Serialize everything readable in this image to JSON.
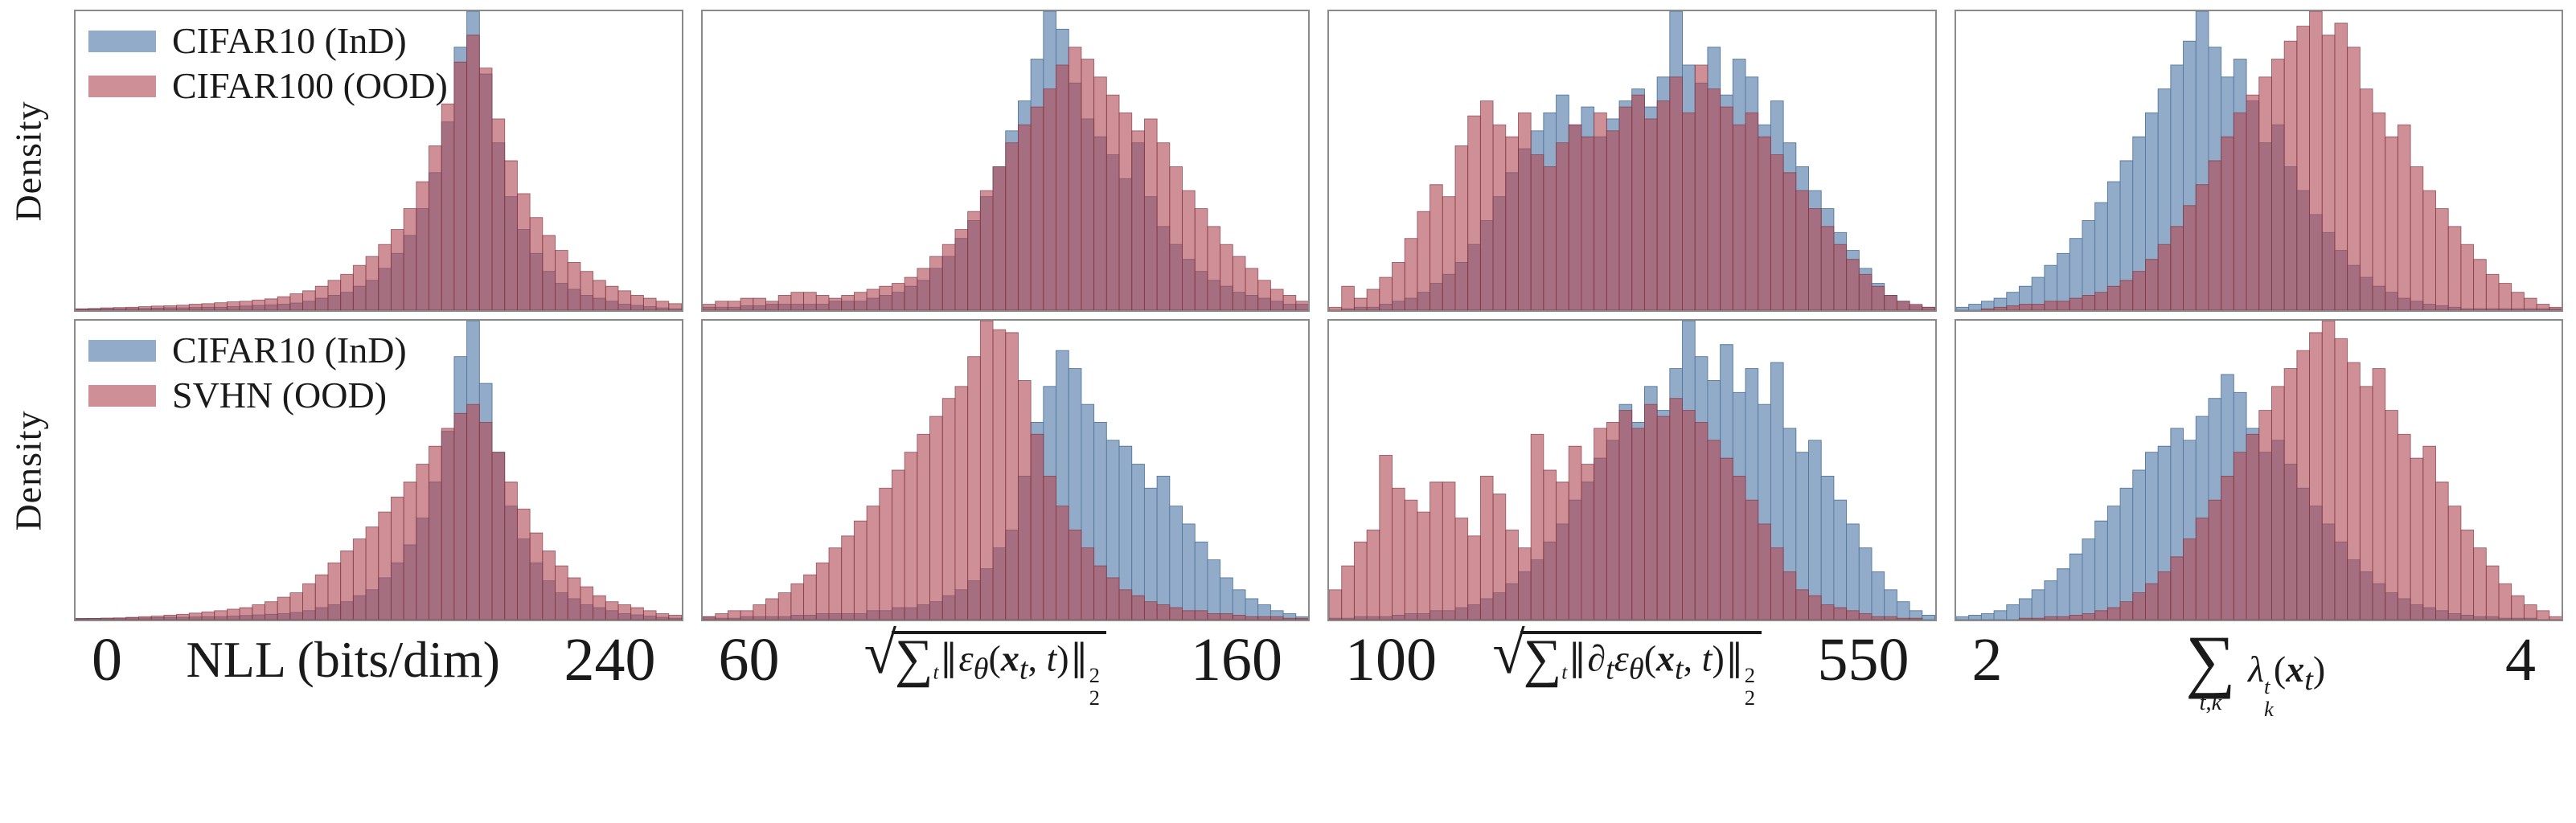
{
  "figure": {
    "description": "2x4 grid of overlapping density histograms comparing in-distribution CIFAR10 statistics against OOD datasets (CIFAR100 top row, SVHN bottom row)"
  },
  "chart_data": {
    "type": "histogram",
    "grid": {
      "rows": 2,
      "cols": 4
    },
    "ylabel": "Density",
    "legend_position": "upper-left of first panel in each row",
    "grid_lines": false,
    "colors": {
      "ind_fill": "#92abc9",
      "ind_edge": "#54779c",
      "ood_fill": "rgba(178,74,86,0.62)",
      "ood_edge": "rgba(128,52,62,0.72)",
      "ood_legend_swatch": "#cf8f96",
      "overlap_appearance": "#a4737e",
      "panel_border": "#8a8a8a"
    },
    "rows": [
      {
        "ood_dataset": "CIFAR100",
        "legend_ind": "CIFAR10 (InD)",
        "legend_ood": "CIFAR100 (OOD)"
      },
      {
        "ood_dataset": "SVHN",
        "legend_ind": "CIFAR10 (InD)",
        "legend_ood": "SVHN (OOD)"
      }
    ],
    "columns": [
      {
        "xlabel_text": "NLL (bits/dim)",
        "xlabel_html": "NLL (bits/dim)",
        "math": false,
        "xmin": 0,
        "xmax": 240,
        "xmin_label": "0",
        "xmax_label": "240"
      },
      {
        "xlabel_text": "sqrt( sum_t || eps_theta(x_t, t) ||_2^2 )",
        "xlabel_html": "<span class=\"rad\">√</span><span class=\"ovl\"><span class=\"insum\">∑</span><sub class=\"lim\"><i>t</i></sub><span class=\"nrm\">∥</span><i>ε</i><sub><i>θ</i></sub>(<b><i>x</i></b><sub><i>t</i></sub>, <i>t</i>)<span class=\"nrm\">∥</span><span class=\"ss\"><span>2</span><span>2</span></span></span>",
        "math": true,
        "xmin": 60,
        "xmax": 160,
        "xmin_label": "60",
        "xmax_label": "160"
      },
      {
        "xlabel_text": "sqrt( sum_t || d_t eps_theta(x_t, t) ||_2^2 )",
        "xlabel_html": "<span class=\"rad\">√</span><span class=\"ovl\"><span class=\"insum\">∑</span><sub class=\"lim\"><i>t</i></sub><span class=\"nrm\">∥</span><i>∂</i><sub><i>t</i></sub><i>ε</i><sub><i>θ</i></sub>(<b><i>x</i></b><sub><i>t</i></sub>, <i>t</i>)<span class=\"nrm\">∥</span><span class=\"ss\"><span>2</span><span>2</span></span></span>",
        "math": true,
        "xmin": 100,
        "xmax": 550,
        "xmin_label": "100",
        "xmax_label": "550"
      },
      {
        "xlabel_text": "sum_{t,k} lambda_k^t(x_t)",
        "xlabel_html": "<span class=\"bigsum\"><span class=\"sig\">∑</span><span class=\"under\"><i>t</i>,<i>k</i></span></span> <i>λ</i><span class=\"ss\"><span><i>t</i></span><span><i>k</i></span></span>(<b><i>x</i></b><sub><i>t</i></sub>)",
        "math": true,
        "xmin": 2,
        "xmax": 4,
        "xmin_label": "2",
        "xmax_label": "4"
      }
    ],
    "value_units": "percent of panel height (densities, y axis unlabeled)",
    "panels": [
      {
        "row": 0,
        "col": 0,
        "series": [
          {
            "name": "CIFAR10 (InD)",
            "values": [
              0.4,
              0.4,
              0.5,
              0.5,
              0.6,
              0.6,
              0.7,
              0.8,
              0.8,
              0.9,
              1,
              1,
              1.2,
              1.4,
              1.6,
              1.8,
              2,
              2.4,
              3,
              4,
              5,
              6,
              8,
              10,
              14,
              19,
              25,
              34,
              46,
              63,
              88,
              100,
              79,
              56,
              38,
              27,
              19,
              13,
              9,
              7,
              5,
              4,
              3,
              2,
              1.6,
              1.2,
              0.8,
              0.5
            ]
          },
          {
            "name": "CIFAR100 (OOD)",
            "values": [
              0.5,
              0.6,
              0.8,
              0.9,
              1,
              1.2,
              1.4,
              1.5,
              1.7,
              2,
              2.2,
              2.5,
              2.8,
              3,
              3.4,
              3.8,
              4.5,
              5.5,
              6.5,
              8,
              10,
              12,
              15,
              18,
              22,
              27,
              34,
              43,
              55,
              69,
              83,
              92,
              81,
              64,
              50,
              39,
              31,
              25,
              20,
              16,
              13,
              10,
              8,
              6.5,
              5,
              4,
              3,
              2.2
            ]
          }
        ]
      },
      {
        "row": 0,
        "col": 1,
        "series": [
          {
            "name": "CIFAR10 (InD)",
            "values": [
              1,
              1,
              1,
              1.5,
              1.5,
              2,
              2,
              2,
              2,
              2,
              3,
              3,
              3,
              4,
              5,
              6,
              8,
              10,
              14,
              18,
              24,
              30,
              38,
              48,
              60,
              70,
              84,
              100,
              94,
              76,
              64,
              58,
              52,
              44,
              56,
              38,
              28,
              22,
              17,
              13,
              10,
              8,
              6,
              5,
              4,
              3,
              2,
              2
            ]
          },
          {
            "name": "CIFAR100 (OOD)",
            "values": [
              2,
              3,
              3,
              4,
              4,
              3,
              5,
              6,
              6,
              5,
              4,
              5,
              6,
              7,
              8,
              9,
              11,
              14,
              18,
              22,
              27,
              33,
              40,
              48,
              56,
              62,
              68,
              74,
              82,
              88,
              84,
              78,
              72,
              66,
              60,
              64,
              56,
              48,
              40,
              34,
              28,
              22,
              18,
              14,
              10,
              7,
              5,
              3
            ]
          }
        ]
      },
      {
        "row": 0,
        "col": 2,
        "series": [
          {
            "name": "CIFAR10 (InD)",
            "values": [
              0,
              0.5,
              1,
              1,
              2,
              3,
              4,
              6,
              9,
              12,
              16,
              22,
              30,
              38,
              46,
              54,
              60,
              66,
              72,
              62,
              68,
              58,
              64,
              70,
              74,
              68,
              78,
              100,
              82,
              76,
              88,
              72,
              84,
              78,
              62,
              70,
              56,
              48,
              40,
              34,
              26,
              20,
              14,
              9,
              5,
              3,
              1.5,
              1
            ]
          },
          {
            "name": "CIFAR100 (OOD)",
            "values": [
              1,
              8,
              4,
              7,
              11,
              16,
              24,
              33,
              42,
              38,
              55,
              65,
              70,
              62,
              58,
              66,
              52,
              48,
              56,
              62,
              58,
              66,
              60,
              68,
              72,
              64,
              70,
              78,
              66,
              82,
              74,
              68,
              62,
              66,
              58,
              52,
              46,
              40,
              34,
              28,
              22,
              17,
              12,
              8,
              5,
              3,
              2,
              1
            ]
          }
        ]
      },
      {
        "row": 0,
        "col": 3,
        "series": [
          {
            "name": "CIFAR10 (InD)",
            "values": [
              1,
              2,
              3,
              4,
              6,
              8,
              11,
              15,
              19,
              24,
              30,
              36,
              43,
              50,
              58,
              66,
              74,
              82,
              90,
              100,
              88,
              78,
              84,
              70,
              56,
              62,
              48,
              40,
              32,
              26,
              20,
              15,
              11,
              8,
              6,
              4,
              3,
              2,
              1.5,
              1,
              0.5,
              0.5,
              0.5,
              0.5,
              0.5,
              0.5,
              0.5,
              0.5
            ]
          },
          {
            "name": "CIFAR100 (OOD)",
            "values": [
              0,
              0,
              0.5,
              1,
              1.5,
              2,
              2,
              3,
              3,
              4,
              5,
              6,
              8,
              10,
              13,
              17,
              22,
              28,
              35,
              42,
              50,
              58,
              66,
              72,
              78,
              84,
              90,
              95,
              100,
              92,
              96,
              88,
              74,
              66,
              58,
              62,
              48,
              40,
              34,
              28,
              22,
              17,
              12,
              9,
              6,
              4,
              2,
              1
            ]
          }
        ]
      },
      {
        "row": 1,
        "col": 0,
        "series": [
          {
            "name": "CIFAR10 (InD)",
            "values": [
              0.4,
              0.4,
              0.5,
              0.5,
              0.6,
              0.6,
              0.7,
              0.8,
              0.8,
              0.9,
              1,
              1,
              1.2,
              1.4,
              1.6,
              1.8,
              2,
              2.4,
              3,
              4,
              5,
              6,
              8,
              10,
              14,
              19,
              25,
              34,
              46,
              63,
              88,
              100,
              79,
              56,
              38,
              27,
              19,
              13,
              9,
              7,
              5,
              4,
              3,
              2,
              1.6,
              1.2,
              0.8,
              0.5
            ]
          },
          {
            "name": "SVHN (OOD)",
            "values": [
              0.3,
              0.4,
              0.5,
              0.6,
              0.8,
              1,
              1.2,
              1.5,
              1.8,
              2.2,
              2.6,
              3,
              3.5,
              4,
              5,
              6,
              7.5,
              9,
              12,
              15,
              19,
              23,
              27,
              31,
              36,
              41,
              46,
              52,
              58,
              64,
              69,
              72,
              66,
              56,
              46,
              37,
              29,
              23,
              18,
              14,
              11,
              8,
              6,
              5,
              4,
              3,
              2,
              1.5
            ]
          }
        ]
      },
      {
        "row": 1,
        "col": 1,
        "series": [
          {
            "name": "CIFAR10 (InD)",
            "values": [
              1,
              0.5,
              0.5,
              1,
              1,
              1,
              1,
              1.5,
              1.5,
              2,
              2,
              2,
              2,
              3,
              3,
              4,
              4,
              5,
              6,
              8,
              10,
              13,
              17,
              24,
              30,
              48,
              66,
              78,
              90,
              84,
              72,
              66,
              60,
              58,
              52,
              44,
              48,
              38,
              32,
              26,
              20,
              14,
              10,
              7,
              5,
              3,
              2,
              1
            ]
          },
          {
            "name": "SVHN (OOD)",
            "values": [
              1,
              2,
              3,
              3,
              5,
              7,
              9,
              12,
              15,
              19,
              24,
              28,
              33,
              38,
              44,
              50,
              56,
              62,
              68,
              74,
              78,
              88,
              100,
              97,
              96,
              80,
              62,
              48,
              38,
              30,
              24,
              18,
              14,
              10,
              8,
              6,
              5,
              4,
              3,
              3,
              2,
              2,
              1.5,
              1,
              1,
              1,
              0.5,
              0.5
            ]
          }
        ]
      },
      {
        "row": 1,
        "col": 2,
        "series": [
          {
            "name": "CIFAR10 (InD)",
            "values": [
              0.5,
              0.5,
              1,
              1,
              1,
              1.5,
              2,
              2,
              3,
              3,
              4,
              5,
              7,
              9,
              12,
              16,
              20,
              26,
              32,
              40,
              46,
              54,
              60,
              72,
              66,
              78,
              70,
              84,
              100,
              88,
              80,
              92,
              76,
              84,
              72,
              86,
              64,
              56,
              60,
              48,
              40,
              32,
              24,
              16,
              10,
              6,
              3,
              1.5
            ]
          },
          {
            "name": "SVHN (OOD)",
            "values": [
              10,
              18,
              26,
              30,
              55,
              44,
              40,
              36,
              46,
              46,
              34,
              28,
              48,
              42,
              30,
              24,
              62,
              50,
              46,
              58,
              52,
              64,
              66,
              70,
              64,
              72,
              68,
              74,
              70,
              66,
              60,
              54,
              48,
              40,
              32,
              24,
              16,
              10,
              8,
              5,
              4,
              3,
              2,
              1,
              1,
              0.5,
              0.5,
              0
            ]
          }
        ]
      },
      {
        "row": 1,
        "col": 3,
        "series": [
          {
            "name": "CIFAR10 (InD)",
            "values": [
              1,
              1.5,
              2,
              3,
              5,
              7,
              10,
              13,
              17,
              22,
              27,
              33,
              38,
              44,
              50,
              56,
              58,
              64,
              60,
              68,
              74,
              82,
              76,
              64,
              56,
              60,
              52,
              44,
              38,
              32,
              26,
              20,
              16,
              12,
              9,
              7,
              5,
              4,
              3,
              2,
              1.5,
              1,
              1,
              0.5,
              0.5,
              0.5,
              0,
              0
            ]
          },
          {
            "name": "SVHN (OOD)",
            "values": [
              0,
              0,
              0,
              0,
              0,
              0.5,
              0.5,
              1,
              1,
              1.5,
              2,
              3,
              4,
              6,
              9,
              12,
              16,
              21,
              27,
              34,
              40,
              48,
              56,
              62,
              70,
              78,
              84,
              90,
              96,
              100,
              94,
              86,
              78,
              84,
              70,
              62,
              54,
              58,
              46,
              38,
              30,
              24,
              18,
              12,
              8,
              5,
              3,
              1
            ]
          }
        ]
      }
    ]
  }
}
